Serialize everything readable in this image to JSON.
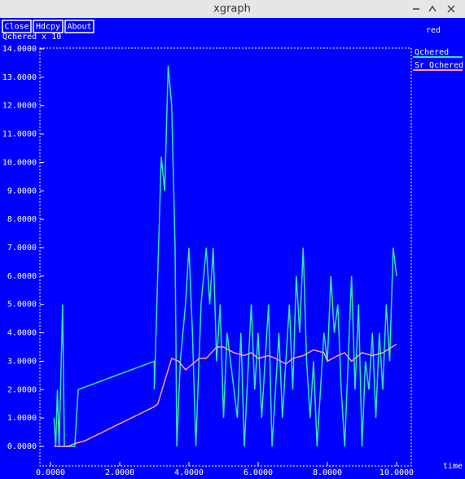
{
  "window": {
    "title": "xgraph",
    "buttons": [
      "Close",
      "Hdcpy",
      "About"
    ],
    "status": "red"
  },
  "chart_data": {
    "type": "line",
    "ylabel": "Qchered x 10",
    "xlabel": "time",
    "xlim": [
      0,
      10
    ],
    "ylim": [
      0,
      14
    ],
    "xticks": [
      {
        "value": 0,
        "label": "0.0000"
      },
      {
        "value": 2,
        "label": "2.0000"
      },
      {
        "value": 4,
        "label": "4.0000"
      },
      {
        "value": 6,
        "label": "6.0000"
      },
      {
        "value": 8,
        "label": "8.0000"
      },
      {
        "value": 10,
        "label": "10.0000"
      }
    ],
    "yticks": [
      {
        "value": 0,
        "label": "0.0000"
      },
      {
        "value": 1,
        "label": "1.0000"
      },
      {
        "value": 2,
        "label": "2.0000"
      },
      {
        "value": 3,
        "label": "3.0000"
      },
      {
        "value": 4,
        "label": "4.0000"
      },
      {
        "value": 5,
        "label": "5.0000"
      },
      {
        "value": 6,
        "label": "6.0000"
      },
      {
        "value": 7,
        "label": "7.0000"
      },
      {
        "value": 8,
        "label": "8.0000"
      },
      {
        "value": 9,
        "label": "9.0000"
      },
      {
        "value": 10,
        "label": "10.0000"
      },
      {
        "value": 11,
        "label": "11.0000"
      },
      {
        "value": 12,
        "label": "12.0000"
      },
      {
        "value": 13,
        "label": "13.0000"
      },
      {
        "value": 14,
        "label": "14.0000"
      }
    ],
    "series": [
      {
        "name": "Qchered",
        "color": "#33e6b0",
        "x": [
          0.1,
          0.15,
          0.2,
          0.25,
          0.35,
          0.4,
          0.7,
          0.8,
          3.0,
          3.0,
          3.2,
          3.3,
          3.4,
          3.5,
          3.6,
          3.65,
          3.75,
          3.9,
          4.0,
          4.1,
          4.2,
          4.35,
          4.5,
          4.6,
          4.7,
          4.8,
          4.9,
          5.0,
          5.1,
          5.2,
          5.3,
          5.4,
          5.5,
          5.6,
          5.8,
          5.9,
          6.0,
          6.1,
          6.2,
          6.3,
          6.4,
          6.5,
          6.6,
          6.7,
          6.8,
          6.9,
          7.0,
          7.1,
          7.2,
          7.3,
          7.4,
          7.5,
          7.6,
          7.7,
          7.9,
          8.0,
          8.1,
          8.2,
          8.3,
          8.4,
          8.5,
          8.6,
          8.7,
          8.8,
          8.9,
          9.0,
          9.1,
          9.2,
          9.3,
          9.4,
          9.5,
          9.6,
          9.7,
          9.8,
          9.9,
          10.0
        ],
        "values": [
          1.0,
          0,
          2.0,
          0,
          5.0,
          0,
          0,
          2.0,
          3.0,
          2.0,
          10.2,
          9.0,
          13.4,
          12.0,
          7.0,
          0,
          3.0,
          5.0,
          7.0,
          4.0,
          0,
          5.0,
          7.0,
          5.0,
          7.0,
          3.0,
          5.0,
          1.0,
          4.0,
          3.0,
          2.0,
          1.0,
          4.0,
          0,
          5.0,
          2.0,
          4.0,
          1.0,
          3.0,
          5.0,
          0,
          2.0,
          4.0,
          1.0,
          3.0,
          5.0,
          2.0,
          6.0,
          4.0,
          7.0,
          3.0,
          1.0,
          3.0,
          0,
          4.0,
          3.0,
          6.0,
          4.0,
          5.0,
          2.0,
          0,
          3.0,
          6.0,
          2.0,
          5.0,
          0,
          3.0,
          2.0,
          4.0,
          1.0,
          4.0,
          2.0,
          5.0,
          3.0,
          7.0,
          6.0
        ]
      },
      {
        "name": "Sr_Qchered",
        "color": "#ff9fa8",
        "x": [
          0.1,
          0.5,
          0.7,
          1.0,
          1.5,
          2.0,
          2.5,
          3.0,
          3.1,
          3.2,
          3.3,
          3.5,
          3.7,
          3.9,
          4.1,
          4.3,
          4.5,
          4.8,
          5.0,
          5.3,
          5.6,
          5.8,
          6.0,
          6.3,
          6.5,
          6.8,
          7.0,
          7.3,
          7.6,
          7.9,
          8.0,
          8.3,
          8.5,
          8.7,
          9.0,
          9.3,
          9.6,
          10.0
        ],
        "values": [
          0,
          0,
          0.1,
          0.2,
          0.5,
          0.8,
          1.1,
          1.4,
          1.5,
          1.9,
          2.3,
          3.1,
          3.0,
          2.7,
          2.9,
          3.1,
          3.1,
          3.5,
          3.5,
          3.3,
          3.2,
          3.3,
          3.1,
          3.2,
          3.1,
          2.9,
          3.1,
          3.2,
          3.4,
          3.3,
          3.0,
          3.2,
          3.3,
          3.0,
          3.3,
          3.2,
          3.3,
          3.6
        ]
      }
    ]
  }
}
